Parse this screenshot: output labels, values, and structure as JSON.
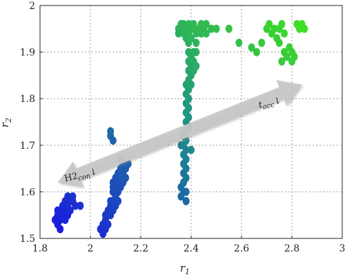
{
  "chart_data": {
    "type": "scatter",
    "xlabel": "r",
    "xlabel_sub": "1",
    "ylabel": "r",
    "ylabel_sub": "2",
    "xlim": [
      1.8,
      3.0
    ],
    "ylim": [
      1.5,
      2.0
    ],
    "x_ticks": [
      "1.8",
      "2",
      "2.2",
      "2.4",
      "2.6",
      "2.8",
      "3"
    ],
    "y_ticks": [
      "1.5",
      "1.6",
      "1.7",
      "1.8",
      "1.9",
      "2"
    ],
    "grid": "dotted",
    "colors": {
      "low": "#1a1adf",
      "mid": "#1e8f8a",
      "high": "#40e020",
      "arrow": "#c8c8c8"
    },
    "annotations": {
      "left_main": "H2",
      "left_sub": "con",
      "right_main": "t",
      "right_sub": "acc",
      "symbol": "↓",
      "arrow_from": [
        1.87,
        1.62
      ],
      "arrow_to": [
        2.84,
        1.83
      ]
    },
    "points": [
      [
        1.86,
        1.54
      ],
      [
        1.87,
        1.53
      ],
      [
        1.87,
        1.55
      ],
      [
        1.88,
        1.52
      ],
      [
        1.88,
        1.54
      ],
      [
        1.88,
        1.56
      ],
      [
        1.89,
        1.55
      ],
      [
        1.89,
        1.57
      ],
      [
        1.9,
        1.56
      ],
      [
        1.9,
        1.58
      ],
      [
        1.91,
        1.55
      ],
      [
        1.91,
        1.57
      ],
      [
        1.91,
        1.59
      ],
      [
        1.92,
        1.58
      ],
      [
        1.92,
        1.56
      ],
      [
        1.93,
        1.58
      ],
      [
        1.93,
        1.59
      ],
      [
        1.94,
        1.57
      ],
      [
        1.96,
        1.57
      ],
      [
        1.87,
        1.56
      ],
      [
        1.9,
        1.54
      ],
      [
        2.04,
        1.52
      ],
      [
        2.05,
        1.51
      ],
      [
        2.05,
        1.53
      ],
      [
        2.06,
        1.52
      ],
      [
        2.06,
        1.54
      ],
      [
        2.06,
        1.55
      ],
      [
        2.07,
        1.53
      ],
      [
        2.07,
        1.55
      ],
      [
        2.07,
        1.56
      ],
      [
        2.08,
        1.55
      ],
      [
        2.08,
        1.57
      ],
      [
        2.08,
        1.58
      ],
      [
        2.09,
        1.56
      ],
      [
        2.09,
        1.58
      ],
      [
        2.09,
        1.6
      ],
      [
        2.1,
        1.57
      ],
      [
        2.1,
        1.59
      ],
      [
        2.1,
        1.61
      ],
      [
        2.1,
        1.63
      ],
      [
        2.11,
        1.58
      ],
      [
        2.11,
        1.6
      ],
      [
        2.11,
        1.62
      ],
      [
        2.11,
        1.64
      ],
      [
        2.12,
        1.61
      ],
      [
        2.12,
        1.63
      ],
      [
        2.12,
        1.65
      ],
      [
        2.12,
        1.67
      ],
      [
        2.13,
        1.62
      ],
      [
        2.13,
        1.64
      ],
      [
        2.13,
        1.66
      ],
      [
        2.14,
        1.63
      ],
      [
        2.14,
        1.65
      ],
      [
        2.15,
        1.66
      ],
      [
        2.08,
        1.72
      ],
      [
        2.08,
        1.73
      ],
      [
        2.09,
        1.71
      ],
      [
        2.09,
        1.61
      ],
      [
        2.09,
        1.62
      ],
      [
        2.36,
        1.59
      ],
      [
        2.36,
        1.61
      ],
      [
        2.37,
        1.62
      ],
      [
        2.37,
        1.64
      ],
      [
        2.37,
        1.66
      ],
      [
        2.37,
        1.68
      ],
      [
        2.37,
        1.7
      ],
      [
        2.37,
        1.72
      ],
      [
        2.38,
        1.58
      ],
      [
        2.38,
        1.6
      ],
      [
        2.38,
        1.63
      ],
      [
        2.38,
        1.65
      ],
      [
        2.38,
        1.67
      ],
      [
        2.38,
        1.69
      ],
      [
        2.38,
        1.71
      ],
      [
        2.38,
        1.73
      ],
      [
        2.38,
        1.75
      ],
      [
        2.38,
        1.77
      ],
      [
        2.38,
        1.79
      ],
      [
        2.38,
        1.81
      ],
      [
        2.38,
        1.83
      ],
      [
        2.39,
        1.74
      ],
      [
        2.39,
        1.76
      ],
      [
        2.39,
        1.78
      ],
      [
        2.39,
        1.8
      ],
      [
        2.39,
        1.82
      ],
      [
        2.39,
        1.84
      ],
      [
        2.39,
        1.86
      ],
      [
        2.39,
        1.88
      ],
      [
        2.39,
        1.9
      ],
      [
        2.39,
        1.92
      ],
      [
        2.4,
        1.83
      ],
      [
        2.4,
        1.85
      ],
      [
        2.4,
        1.87
      ],
      [
        2.4,
        1.89
      ],
      [
        2.41,
        1.86
      ],
      [
        2.41,
        1.88
      ],
      [
        2.41,
        1.9
      ],
      [
        2.42,
        1.87
      ],
      [
        2.42,
        1.9
      ],
      [
        2.42,
        1.92
      ],
      [
        2.36,
        1.7
      ],
      [
        2.37,
        1.6
      ],
      [
        2.4,
        1.69
      ],
      [
        2.35,
        1.95
      ],
      [
        2.35,
        1.94
      ],
      [
        2.36,
        1.96
      ],
      [
        2.36,
        1.95
      ],
      [
        2.37,
        1.94
      ],
      [
        2.37,
        1.96
      ],
      [
        2.38,
        1.95
      ],
      [
        2.38,
        1.93
      ],
      [
        2.39,
        1.96
      ],
      [
        2.39,
        1.94
      ],
      [
        2.4,
        1.95
      ],
      [
        2.4,
        1.93
      ],
      [
        2.41,
        1.95
      ],
      [
        2.41,
        1.96
      ],
      [
        2.42,
        1.94
      ],
      [
        2.43,
        1.95
      ],
      [
        2.44,
        1.96
      ],
      [
        2.44,
        1.94
      ],
      [
        2.45,
        1.95
      ],
      [
        2.46,
        1.96
      ],
      [
        2.46,
        1.94
      ],
      [
        2.48,
        1.95
      ],
      [
        2.5,
        1.95
      ],
      [
        2.55,
        1.95
      ],
      [
        2.59,
        1.92
      ],
      [
        2.64,
        1.91
      ],
      [
        2.66,
        1.9
      ],
      [
        2.68,
        1.92
      ],
      [
        2.7,
        1.95
      ],
      [
        2.71,
        1.96
      ],
      [
        2.72,
        1.94
      ],
      [
        2.73,
        1.95
      ],
      [
        2.74,
        1.93
      ],
      [
        2.75,
        1.95
      ],
      [
        2.75,
        1.92
      ],
      [
        2.76,
        1.96
      ],
      [
        2.77,
        1.94
      ],
      [
        2.77,
        1.9
      ],
      [
        2.78,
        1.89
      ],
      [
        2.79,
        1.91
      ],
      [
        2.8,
        1.88
      ],
      [
        2.8,
        1.9
      ],
      [
        2.81,
        1.89
      ],
      [
        2.82,
        1.96
      ],
      [
        2.83,
        1.95
      ],
      [
        2.84,
        1.96
      ],
      [
        2.85,
        1.95
      ],
      [
        2.76,
        1.88
      ]
    ]
  }
}
